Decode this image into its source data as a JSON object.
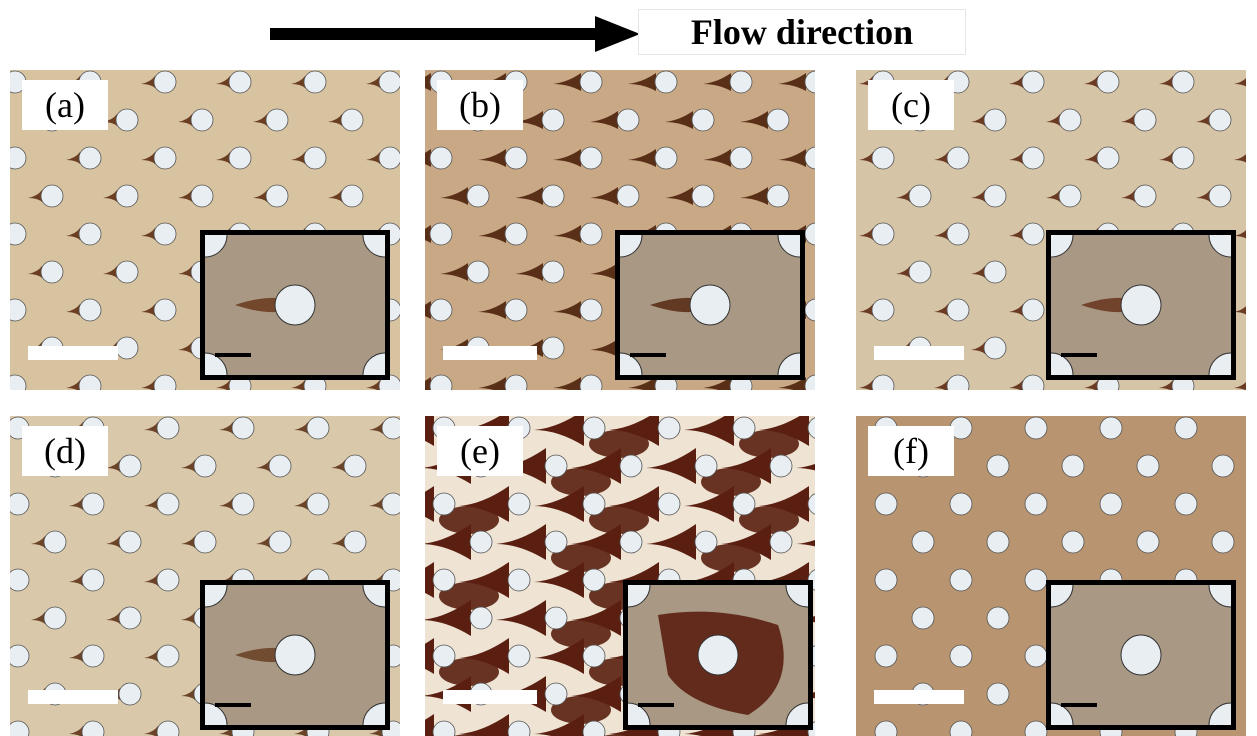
{
  "header": {
    "flow_label": "Flow direction"
  },
  "panels": [
    {
      "label": "(a)",
      "tone": "#d8c3a0",
      "deposit": "#6b3e22",
      "deposit_amount": "low"
    },
    {
      "label": "(b)",
      "tone": "#c9a985",
      "deposit": "#5a2f18",
      "deposit_amount": "medium"
    },
    {
      "label": "(c)",
      "tone": "#d6c4a6",
      "deposit": "#6b3a22",
      "deposit_amount": "low"
    },
    {
      "label": "(d)",
      "tone": "#d9c8aa",
      "deposit": "#6b4428",
      "deposit_amount": "low"
    },
    {
      "label": "(e)",
      "tone": "#efe3d4",
      "deposit": "#5a1f10",
      "deposit_amount": "high"
    },
    {
      "label": "(f)",
      "tone": "#b89470",
      "deposit": "#8a6a4c",
      "deposit_amount": "none"
    }
  ],
  "colors": {
    "pillar": "#e9eef2",
    "inset_bg": "#a89884",
    "frame": "#000000"
  }
}
